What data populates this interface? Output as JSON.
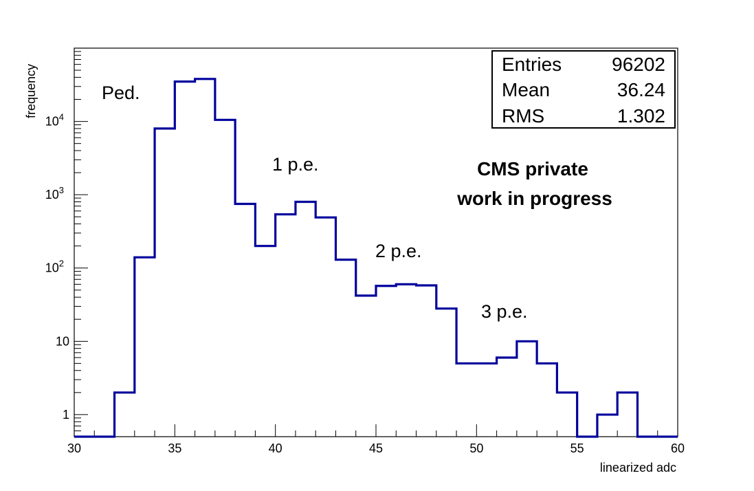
{
  "chart_data": {
    "type": "histogram",
    "xlabel": "linearized adc",
    "ylabel": "frequency",
    "xlim": [
      30,
      60
    ],
    "ylim": [
      0.5,
      100000
    ],
    "y_scale": "log",
    "x_ticks": [
      "30",
      "35",
      "40",
      "45",
      "50",
      "55",
      "60"
    ],
    "y_ticks": [
      {
        "value": 1,
        "label": "1"
      },
      {
        "value": 10,
        "label": "10"
      },
      {
        "value": 100,
        "label": "10",
        "exponent": "2"
      },
      {
        "value": 1000,
        "label": "10",
        "exponent": "3"
      },
      {
        "value": 10000,
        "label": "10",
        "exponent": "4"
      }
    ],
    "bin_width": 1,
    "bins": [
      {
        "x": 31,
        "value": 0
      },
      {
        "x": 32,
        "value": 2
      },
      {
        "x": 33,
        "value": 140
      },
      {
        "x": 34,
        "value": 8000
      },
      {
        "x": 35,
        "value": 35000
      },
      {
        "x": 36,
        "value": 38000
      },
      {
        "x": 37,
        "value": 10500
      },
      {
        "x": 38,
        "value": 750
      },
      {
        "x": 39,
        "value": 200
      },
      {
        "x": 40,
        "value": 540
      },
      {
        "x": 41,
        "value": 800
      },
      {
        "x": 42,
        "value": 490
      },
      {
        "x": 43,
        "value": 130
      },
      {
        "x": 44,
        "value": 42
      },
      {
        "x": 45,
        "value": 57
      },
      {
        "x": 46,
        "value": 60
      },
      {
        "x": 47,
        "value": 58
      },
      {
        "x": 48,
        "value": 28
      },
      {
        "x": 49,
        "value": 5
      },
      {
        "x": 50,
        "value": 5
      },
      {
        "x": 51,
        "value": 6
      },
      {
        "x": 52,
        "value": 10
      },
      {
        "x": 53,
        "value": 5
      },
      {
        "x": 54,
        "value": 2
      },
      {
        "x": 55,
        "value": 0
      },
      {
        "x": 56,
        "value": 1
      },
      {
        "x": 57,
        "value": 2
      },
      {
        "x": 58,
        "value": 0
      },
      {
        "x": 59,
        "value": 0
      }
    ],
    "line_color": "#00009c",
    "stats_box": {
      "entries_label": "Entries",
      "entries_value": "96202",
      "mean_label": "Mean",
      "mean_value": "36.24",
      "rms_label": "RMS",
      "rms_value": "1.302"
    },
    "annotations": {
      "ped": "Ped.",
      "pe1": "1 p.e.",
      "pe2": "2 p.e.",
      "pe3": "3 p.e.",
      "cms_line1": "CMS private",
      "cms_line2": "work in progress"
    }
  }
}
